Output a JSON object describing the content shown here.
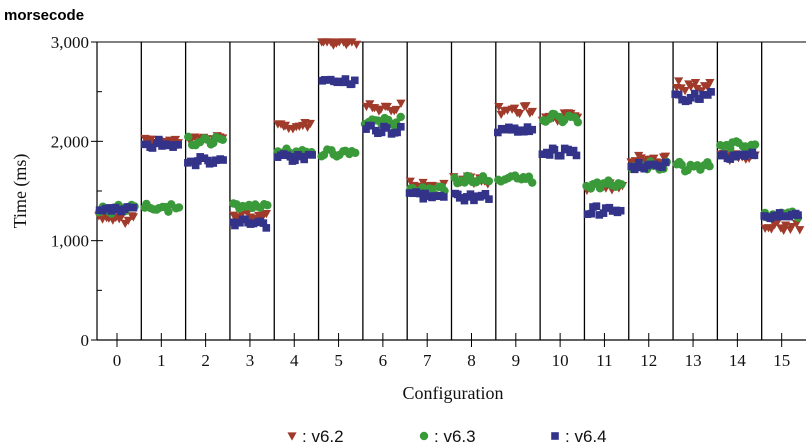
{
  "chart_data": {
    "type": "scatter",
    "title": "morsecode",
    "xlabel": "Configuration",
    "ylabel": "Time (ms)",
    "ylim": [
      0,
      3000
    ],
    "yticks": [
      0,
      1000,
      2000,
      3000
    ],
    "ytick_labels": [
      "0",
      "1,000",
      "2,000",
      "3,000"
    ],
    "categories": [
      "0",
      "1",
      "2",
      "3",
      "4",
      "5",
      "6",
      "7",
      "8",
      "9",
      "10",
      "11",
      "12",
      "13",
      "14",
      "15"
    ],
    "legend_position": "bottom",
    "series": [
      {
        "name": "v6.2",
        "marker": "triangle-down",
        "color": "#a03a2a",
        "values": [
          1220,
          2000,
          2030,
          1260,
          2160,
          3000,
          2330,
          1560,
          1610,
          2310,
          2250,
          1530,
          1820,
          2560,
          1850,
          1140
        ]
      },
      {
        "name": "v6.3",
        "marker": "circle",
        "color": "#3a9a3a",
        "values": [
          1320,
          1340,
          2000,
          1350,
          1890,
          1890,
          2200,
          1510,
          1610,
          1620,
          2240,
          1560,
          1760,
          1750,
          1950,
          1260
        ]
      },
      {
        "name": "v6.4",
        "marker": "square",
        "color": "#33338a",
        "values": [
          1320,
          1970,
          1800,
          1180,
          1850,
          2610,
          2120,
          1460,
          1440,
          2110,
          1890,
          1300,
          1740,
          2450,
          1860,
          1250
        ]
      }
    ]
  }
}
